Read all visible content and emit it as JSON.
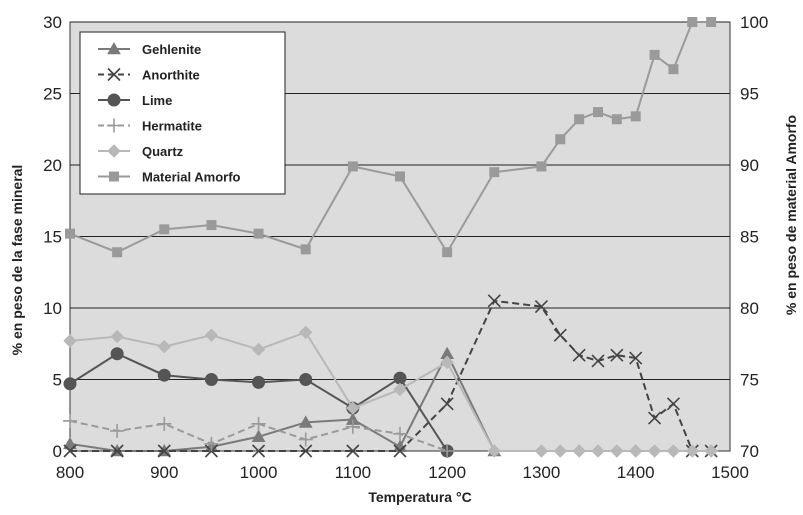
{
  "chart_data": {
    "type": "line",
    "title": "",
    "xlabel": "Temperatura °C",
    "ylabel_left": "% en peso de la fase mineral",
    "ylabel_right": "% en peso de material Amorfo",
    "xlim": [
      800,
      1500
    ],
    "ylim_left": [
      0,
      30
    ],
    "ylim_right": [
      70,
      100
    ],
    "x_ticks": [
      800,
      900,
      1000,
      1100,
      1200,
      1300,
      1400,
      1500
    ],
    "y_ticks_left": [
      0,
      5,
      10,
      15,
      20,
      25,
      30
    ],
    "y_ticks_right": [
      70,
      75,
      80,
      85,
      90,
      95,
      100
    ],
    "grid": "horizontal",
    "legend_position": "top-left",
    "plot_background": "#dcdcdc",
    "series": [
      {
        "name": "Gehlenite",
        "axis": "left",
        "marker": "triangle",
        "color": "#7a7a7a",
        "dash": "solid",
        "x": [
          800,
          850,
          900,
          950,
          1000,
          1050,
          1100,
          1150,
          1200,
          1250
        ],
        "y": [
          0.5,
          0,
          0,
          0.3,
          1.0,
          2.0,
          2.2,
          0.3,
          6.8,
          0
        ]
      },
      {
        "name": "Anorthite",
        "axis": "left",
        "marker": "x",
        "color": "#444444",
        "dash": "dashed",
        "x": [
          800,
          850,
          900,
          950,
          1000,
          1050,
          1100,
          1150,
          1200,
          1250,
          1300,
          1320,
          1340,
          1360,
          1380,
          1400,
          1420,
          1440,
          1460,
          1480
        ],
        "y": [
          0,
          0,
          0,
          0,
          0,
          0,
          0,
          0,
          3.3,
          10.5,
          10.1,
          8.1,
          6.7,
          6.3,
          6.7,
          6.5,
          2.3,
          3.3,
          0,
          0
        ]
      },
      {
        "name": "Lime",
        "axis": "left",
        "marker": "circle",
        "color": "#555555",
        "dash": "solid",
        "x": [
          800,
          850,
          900,
          950,
          1000,
          1050,
          1100,
          1150,
          1200
        ],
        "y": [
          4.7,
          6.8,
          5.3,
          5.0,
          4.8,
          5.0,
          3.0,
          5.1,
          0
        ]
      },
      {
        "name": "Hermatite",
        "axis": "left",
        "marker": "plus",
        "color": "#9a9a9a",
        "dash": "dashed",
        "x": [
          800,
          850,
          900,
          950,
          1000,
          1050,
          1100,
          1150,
          1200
        ],
        "y": [
          2.1,
          1.4,
          1.9,
          0.5,
          1.9,
          0.8,
          1.7,
          1.2,
          0
        ]
      },
      {
        "name": "Quartz",
        "axis": "left",
        "marker": "diamond",
        "color": "#b8b8b8",
        "dash": "solid",
        "x": [
          800,
          850,
          900,
          950,
          1000,
          1050,
          1100,
          1150,
          1200,
          1250,
          1300,
          1320,
          1340,
          1360,
          1380,
          1400,
          1420,
          1440,
          1460,
          1480
        ],
        "y": [
          7.7,
          8.0,
          7.3,
          8.1,
          7.1,
          8.3,
          3.0,
          4.3,
          6.2,
          0,
          0,
          0,
          0,
          0,
          0,
          0,
          0,
          0,
          0,
          0
        ]
      },
      {
        "name": "Material Amorfo",
        "axis": "right",
        "marker": "square",
        "color": "#9a9a9a",
        "dash": "solid",
        "x": [
          800,
          850,
          900,
          950,
          1000,
          1050,
          1100,
          1150,
          1200,
          1250,
          1300,
          1320,
          1340,
          1360,
          1380,
          1400,
          1420,
          1440,
          1460,
          1480
        ],
        "y": [
          85.2,
          83.9,
          85.5,
          85.8,
          85.2,
          84.1,
          89.9,
          89.2,
          83.9,
          89.5,
          89.9,
          91.8,
          93.2,
          93.7,
          93.2,
          93.4,
          97.7,
          96.7,
          100,
          100
        ]
      }
    ]
  }
}
